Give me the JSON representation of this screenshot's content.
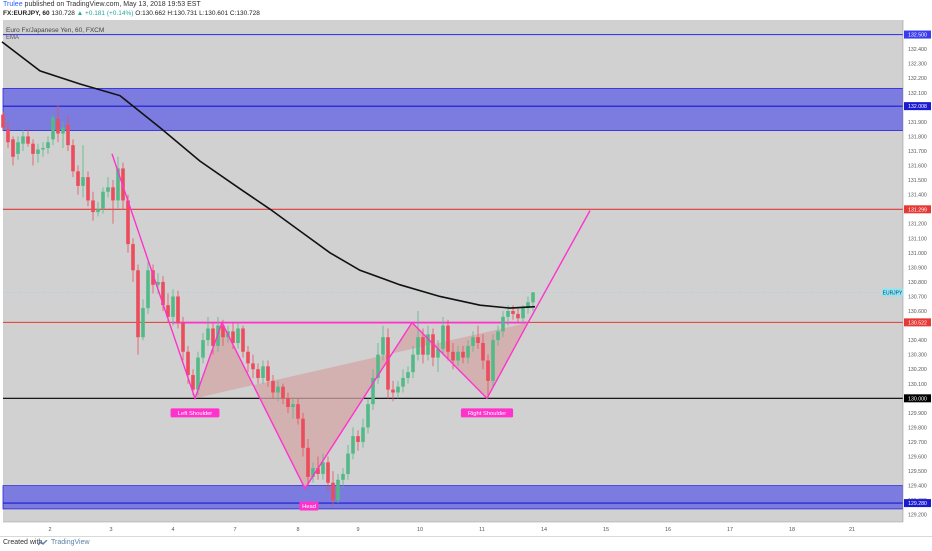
{
  "header": {
    "author": "Trulee",
    "published_text": "published on TradingView.com, May 13, 2018 19:53 EST",
    "symbol": "FX:EURJPY, 60",
    "last": "130.728",
    "change": "▲ +0.181 (+0.14%)",
    "ohlc": "O:130.662 H:130.731 L:130.601 C:130.728"
  },
  "legend": {
    "series_title": "Euro Fx/Japanese Yen, 60, FXCM",
    "indicator": "EMA"
  },
  "footer": {
    "created": "Created with",
    "brand": "TradingView"
  },
  "colors": {
    "background": "#d1d1d1",
    "up_candle": "#53b987",
    "down_candle": "#eb4d5c",
    "ema": "#111111",
    "pattern": "#ff33cc",
    "pattern_fill": "#d4a6a6",
    "zone": "#7c7ce0",
    "resistance": "#e53935"
  },
  "chart_data": {
    "type": "candlestick",
    "symbol_label": "EURJPY",
    "ylim": [
      129.15,
      132.6
    ],
    "y_ticks": [
      129.2,
      129.3,
      129.4,
      129.5,
      129.6,
      129.7,
      129.8,
      129.9,
      130.1,
      130.2,
      130.3,
      130.4,
      130.6,
      130.7,
      130.8,
      130.9,
      131.0,
      131.1,
      131.2,
      131.4,
      131.5,
      131.6,
      131.7,
      131.8,
      131.9,
      132.1,
      132.2,
      132.3,
      132.4
    ],
    "x_ticks": [
      "2",
      "3",
      "4",
      "7",
      "8",
      "9",
      "10",
      "11",
      "14",
      "15",
      "16",
      "17",
      "18",
      "21"
    ],
    "last_price": 130.728,
    "levels": [
      {
        "price": 132.5,
        "label": "132.500",
        "color": "#3a3af0"
      },
      {
        "price": 132.008,
        "label": "132.008",
        "color": "#1a1ad0"
      },
      {
        "price": 131.299,
        "label": "131.299",
        "color": "#e53935"
      },
      {
        "price": 130.522,
        "label": "130.522",
        "color": "#e53935"
      },
      {
        "price": 130.0,
        "label": "130.000",
        "color": "#000000"
      },
      {
        "price": 129.28,
        "label": "129.280",
        "color": "#1a1ad0"
      }
    ],
    "zones": [
      {
        "top": 132.13,
        "bottom": 131.84
      },
      {
        "top": 129.4,
        "bottom": 129.24
      }
    ],
    "pattern_points": [
      [
        112,
        131.68
      ],
      [
        195,
        130.0
      ],
      [
        222,
        130.52
      ],
      [
        305,
        129.38
      ],
      [
        412,
        130.52
      ],
      [
        487,
        130.0
      ],
      [
        528,
        130.52
      ],
      [
        590,
        131.29
      ]
    ],
    "pattern_labels": [
      {
        "text": "Left Shoulder",
        "x": 195,
        "price": 129.9
      },
      {
        "text": "Head",
        "x": 309,
        "price": 129.26
      },
      {
        "text": "Right Shoulder",
        "x": 487,
        "price": 129.9
      }
    ],
    "ema": [
      [
        2,
        132.45
      ],
      [
        40,
        132.25
      ],
      [
        80,
        132.16
      ],
      [
        120,
        132.08
      ],
      [
        160,
        131.86
      ],
      [
        200,
        131.63
      ],
      [
        240,
        131.44
      ],
      [
        270,
        131.3
      ],
      [
        300,
        131.15
      ],
      [
        330,
        131.0
      ],
      [
        360,
        130.88
      ],
      [
        400,
        130.78
      ],
      [
        440,
        130.7
      ],
      [
        480,
        130.64
      ],
      [
        510,
        130.62
      ],
      [
        535,
        130.63
      ]
    ],
    "candles": [
      [
        3,
        131.95,
        131.97,
        131.84,
        131.86
      ],
      [
        8,
        131.85,
        131.9,
        131.72,
        131.76
      ],
      [
        13,
        131.78,
        131.8,
        131.6,
        131.66
      ],
      [
        18,
        131.68,
        131.8,
        131.64,
        131.76
      ],
      [
        23,
        131.75,
        131.85,
        131.7,
        131.8
      ],
      [
        28,
        131.8,
        131.85,
        131.73,
        131.75
      ],
      [
        33,
        131.75,
        131.78,
        131.6,
        131.68
      ],
      [
        38,
        131.68,
        131.75,
        131.62,
        131.71
      ],
      [
        43,
        131.71,
        131.76,
        131.66,
        131.72
      ],
      [
        48,
        131.72,
        131.8,
        131.68,
        131.76
      ],
      [
        53,
        131.78,
        131.95,
        131.74,
        131.93
      ],
      [
        58,
        131.92,
        132.02,
        131.76,
        131.82
      ],
      [
        63,
        131.82,
        131.9,
        131.72,
        131.86
      ],
      [
        68,
        131.88,
        131.94,
        131.7,
        131.74
      ],
      [
        73,
        131.74,
        131.78,
        131.52,
        131.56
      ],
      [
        78,
        131.56,
        131.6,
        131.4,
        131.46
      ],
      [
        83,
        131.46,
        131.74,
        131.38,
        131.52
      ],
      [
        88,
        131.52,
        131.56,
        131.32,
        131.36
      ],
      [
        93,
        131.36,
        131.42,
        131.22,
        131.28
      ],
      [
        98,
        131.28,
        131.35,
        131.25,
        131.3
      ],
      [
        103,
        131.3,
        131.45,
        131.27,
        131.42
      ],
      [
        108,
        131.42,
        131.52,
        131.38,
        131.45
      ],
      [
        113,
        131.45,
        131.5,
        131.2,
        131.36
      ],
      [
        118,
        131.36,
        131.66,
        131.3,
        131.58
      ],
      [
        123,
        131.58,
        131.62,
        131.3,
        131.36
      ],
      [
        128,
        131.36,
        131.4,
        131.0,
        131.06
      ],
      [
        133,
        131.06,
        131.1,
        130.8,
        130.88
      ],
      [
        138,
        130.88,
        130.92,
        130.3,
        130.42
      ],
      [
        143,
        130.42,
        130.68,
        130.4,
        130.62
      ],
      [
        148,
        130.62,
        130.95,
        130.58,
        130.88
      ],
      [
        153,
        130.88,
        130.92,
        130.72,
        130.78
      ],
      [
        158,
        130.78,
        130.86,
        130.72,
        130.8
      ],
      [
        163,
        130.8,
        130.84,
        130.6,
        130.64
      ],
      [
        168,
        130.64,
        130.72,
        130.52,
        130.56
      ],
      [
        173,
        130.56,
        130.75,
        130.5,
        130.7
      ],
      [
        178,
        130.7,
        130.74,
        130.48,
        130.52
      ],
      [
        183,
        130.52,
        130.56,
        130.26,
        130.32
      ],
      [
        188,
        130.32,
        130.36,
        130.1,
        130.16
      ],
      [
        193,
        130.16,
        130.2,
        130.02,
        130.06
      ],
      [
        198,
        130.06,
        130.32,
        130.02,
        130.28
      ],
      [
        203,
        130.28,
        130.45,
        130.24,
        130.4
      ],
      [
        208,
        130.4,
        130.56,
        130.36,
        130.48
      ],
      [
        213,
        130.48,
        130.52,
        130.3,
        130.36
      ],
      [
        218,
        130.36,
        130.56,
        130.32,
        130.5
      ],
      [
        223,
        130.5,
        130.54,
        130.36,
        130.42
      ],
      [
        228,
        130.42,
        130.5,
        130.38,
        130.46
      ],
      [
        233,
        130.46,
        130.52,
        130.34,
        130.38
      ],
      [
        238,
        130.38,
        130.52,
        130.34,
        130.48
      ],
      [
        243,
        130.48,
        130.5,
        130.28,
        130.32
      ],
      [
        248,
        130.32,
        130.36,
        130.18,
        130.24
      ],
      [
        253,
        130.24,
        130.3,
        130.14,
        130.2
      ],
      [
        258,
        130.2,
        130.24,
        130.1,
        130.14
      ],
      [
        263,
        130.14,
        130.26,
        130.1,
        130.22
      ],
      [
        268,
        130.22,
        130.26,
        130.08,
        130.12
      ],
      [
        273,
        130.12,
        130.16,
        130.0,
        130.04
      ],
      [
        278,
        130.04,
        130.12,
        129.98,
        130.08
      ],
      [
        283,
        130.08,
        130.1,
        129.96,
        130.0
      ],
      [
        288,
        130.0,
        130.04,
        129.9,
        129.94
      ],
      [
        293,
        129.94,
        130.0,
        129.86,
        129.96
      ],
      [
        298,
        129.96,
        130.0,
        129.82,
        129.86
      ],
      [
        303,
        129.86,
        129.9,
        129.6,
        129.66
      ],
      [
        308,
        129.66,
        129.72,
        129.4,
        129.46
      ],
      [
        313,
        129.46,
        129.56,
        129.42,
        129.52
      ],
      [
        318,
        129.52,
        129.6,
        129.44,
        129.48
      ],
      [
        323,
        129.48,
        129.62,
        129.44,
        129.56
      ],
      [
        328,
        129.56,
        129.6,
        129.36,
        129.42
      ],
      [
        333,
        129.42,
        129.5,
        129.26,
        129.3
      ],
      [
        338,
        129.3,
        129.48,
        129.28,
        129.44
      ],
      [
        343,
        129.44,
        129.52,
        129.38,
        129.48
      ],
      [
        348,
        129.48,
        129.68,
        129.44,
        129.62
      ],
      [
        353,
        129.62,
        129.8,
        129.58,
        129.74
      ],
      [
        358,
        129.74,
        129.78,
        129.64,
        129.7
      ],
      [
        363,
        129.7,
        129.86,
        129.66,
        129.8
      ],
      [
        368,
        129.8,
        130.0,
        129.76,
        129.96
      ],
      [
        373,
        129.96,
        130.2,
        129.92,
        130.14
      ],
      [
        378,
        130.14,
        130.38,
        130.1,
        130.3
      ],
      [
        383,
        130.3,
        130.5,
        130.26,
        130.42
      ],
      [
        388,
        130.42,
        130.48,
        130.0,
        130.06
      ],
      [
        393,
        130.06,
        130.12,
        129.98,
        130.04
      ],
      [
        398,
        130.04,
        130.12,
        130.0,
        130.08
      ],
      [
        403,
        130.08,
        130.2,
        130.04,
        130.14
      ],
      [
        408,
        130.14,
        130.22,
        130.1,
        130.18
      ],
      [
        413,
        130.18,
        130.36,
        130.14,
        130.3
      ],
      [
        418,
        130.3,
        130.6,
        130.26,
        130.42
      ],
      [
        423,
        130.42,
        130.48,
        130.24,
        130.3
      ],
      [
        428,
        130.3,
        130.5,
        130.26,
        130.44
      ],
      [
        433,
        130.44,
        130.48,
        130.22,
        130.28
      ],
      [
        438,
        130.28,
        130.4,
        130.18,
        130.34
      ],
      [
        443,
        130.34,
        130.56,
        130.3,
        130.5
      ],
      [
        448,
        130.5,
        130.54,
        130.26,
        130.32
      ],
      [
        453,
        130.32,
        130.38,
        130.2,
        130.26
      ],
      [
        458,
        130.26,
        130.36,
        130.22,
        130.32
      ],
      [
        463,
        130.32,
        130.36,
        130.24,
        130.28
      ],
      [
        468,
        130.28,
        130.4,
        130.24,
        130.36
      ],
      [
        473,
        130.36,
        130.46,
        130.32,
        130.42
      ],
      [
        478,
        130.42,
        130.5,
        130.34,
        130.38
      ],
      [
        483,
        130.38,
        130.44,
        130.2,
        130.26
      ],
      [
        488,
        130.26,
        130.3,
        130.0,
        130.12
      ],
      [
        493,
        130.12,
        130.44,
        130.08,
        130.4
      ],
      [
        498,
        130.4,
        130.5,
        130.36,
        130.46
      ],
      [
        503,
        130.46,
        130.6,
        130.42,
        130.56
      ],
      [
        508,
        130.56,
        130.64,
        130.5,
        130.6
      ],
      [
        513,
        130.6,
        130.64,
        130.54,
        130.58
      ],
      [
        518,
        130.58,
        130.62,
        130.52,
        130.55
      ],
      [
        523,
        130.55,
        130.64,
        130.52,
        130.62
      ],
      [
        528,
        130.62,
        130.7,
        130.58,
        130.66
      ],
      [
        533,
        130.66,
        130.731,
        130.601,
        130.728
      ]
    ]
  }
}
